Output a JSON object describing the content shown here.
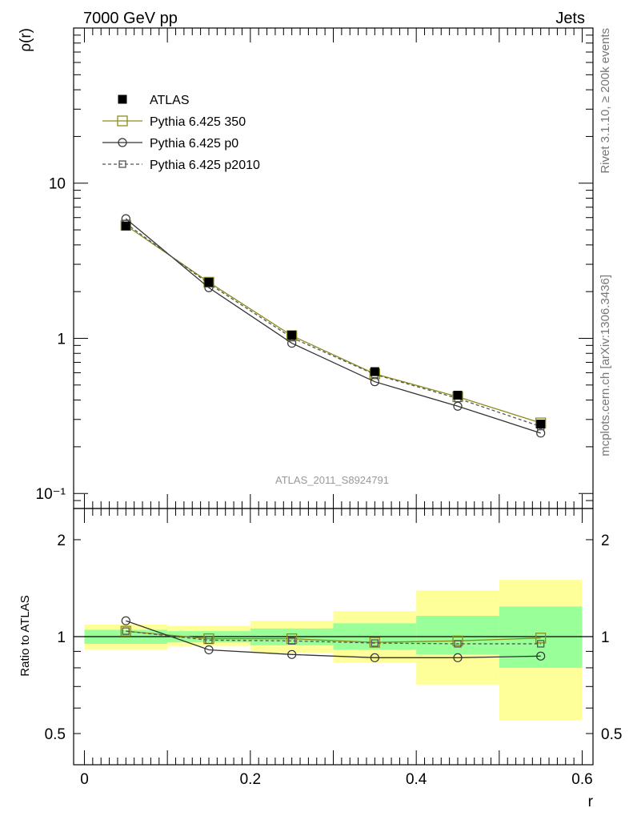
{
  "header": {
    "energy": "7000 GeV pp",
    "process": "Jets"
  },
  "side_labels": {
    "rivet": "Rivet 3.1.10, ≥ 200k events",
    "mcplots": "mcplots.cern.ch [arXiv:1306.3436]"
  },
  "analysis_label": "ATLAS_2011_S8924791",
  "colors": {
    "data": "#000000",
    "p350": "#8c8c1a",
    "p0": "#333333",
    "p2010": "#555555",
    "band_inner": "#99ff99",
    "band_outer": "#ffff99",
    "analysis_label": "#999999",
    "side_label": "#777777"
  },
  "chart_data": [
    {
      "type": "line",
      "panel": "main",
      "title": "",
      "xlabel": "",
      "ylabel": "ρ(r)",
      "xlim": [
        -0.013,
        0.613
      ],
      "ylim": [
        0.08,
        100
      ],
      "yscale": "log",
      "yticks": [
        {
          "value": 10,
          "label": "10"
        },
        {
          "value": 1,
          "label": "1"
        },
        {
          "value": 0.1,
          "label": "10⁻¹"
        }
      ],
      "legend_position": "top-left",
      "x": [
        0.05,
        0.15,
        0.25,
        0.35,
        0.45,
        0.55
      ],
      "series": [
        {
          "name": "ATLAS",
          "style": "data",
          "values": [
            5.3,
            2.3,
            1.05,
            0.61,
            0.43,
            0.28
          ]
        },
        {
          "name": "Pythia 6.425 350",
          "style": "p350",
          "values": [
            5.35,
            2.3,
            1.04,
            0.59,
            0.42,
            0.285
          ]
        },
        {
          "name": "Pythia 6.425 p0",
          "style": "p0",
          "values": [
            5.9,
            2.12,
            0.93,
            0.525,
            0.365,
            0.245
          ]
        },
        {
          "name": "Pythia 6.425 p2010",
          "style": "p2010",
          "values": [
            5.5,
            2.25,
            1.01,
            0.585,
            0.41,
            0.27
          ]
        }
      ]
    },
    {
      "type": "line",
      "panel": "ratio",
      "title": "",
      "xlabel": "r",
      "ylabel": "Ratio to ATLAS",
      "xlim": [
        -0.013,
        0.613
      ],
      "ylim": [
        0.4,
        2.5
      ],
      "yscale": "log",
      "yticks": [
        {
          "value": 2,
          "label": "2"
        },
        {
          "value": 1,
          "label": "1"
        },
        {
          "value": 0.5,
          "label": "0.5"
        }
      ],
      "xticks": [
        {
          "value": 0,
          "label": "0"
        },
        {
          "value": 0.2,
          "label": "0.2"
        },
        {
          "value": 0.4,
          "label": "0.4"
        },
        {
          "value": 0.6,
          "label": "0.6"
        }
      ],
      "bins": [
        {
          "xlo": 0.0,
          "xhi": 0.1,
          "inner": [
            0.95,
            1.05
          ],
          "outer": [
            0.91,
            1.09
          ]
        },
        {
          "xlo": 0.1,
          "xhi": 0.2,
          "inner": [
            0.96,
            1.04
          ],
          "outer": [
            0.935,
            1.08
          ]
        },
        {
          "xlo": 0.2,
          "xhi": 0.3,
          "inner": [
            0.94,
            1.06
          ],
          "outer": [
            0.89,
            1.12
          ]
        },
        {
          "xlo": 0.3,
          "xhi": 0.4,
          "inner": [
            0.91,
            1.1
          ],
          "outer": [
            0.83,
            1.2
          ]
        },
        {
          "xlo": 0.4,
          "xhi": 0.5,
          "inner": [
            0.88,
            1.16
          ],
          "outer": [
            0.71,
            1.39
          ]
        },
        {
          "xlo": 0.5,
          "xhi": 0.6,
          "inner": [
            0.8,
            1.24
          ],
          "outer": [
            0.55,
            1.5
          ]
        }
      ],
      "x": [
        0.05,
        0.15,
        0.25,
        0.35,
        0.45,
        0.55
      ],
      "series": [
        {
          "name": "Pythia 6.425 350",
          "style": "p350",
          "values": [
            1.04,
            0.985,
            0.985,
            0.96,
            0.97,
            0.99
          ]
        },
        {
          "name": "Pythia 6.425 p0",
          "style": "p0",
          "values": [
            1.12,
            0.91,
            0.88,
            0.86,
            0.86,
            0.87
          ]
        },
        {
          "name": "Pythia 6.425 p2010",
          "style": "p2010",
          "values": [
            1.04,
            0.975,
            0.97,
            0.955,
            0.95,
            0.95
          ]
        }
      ]
    }
  ]
}
